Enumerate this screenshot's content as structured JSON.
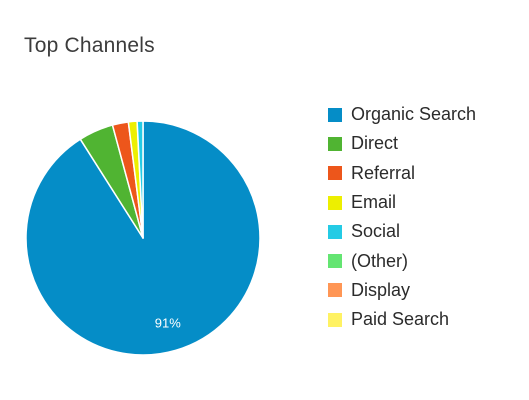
{
  "chart_data": {
    "type": "pie",
    "title": "Top Channels",
    "slices": [
      {
        "label": "Organic Search",
        "value": 91,
        "color": "#058dc7",
        "data_label": "91%"
      },
      {
        "label": "Direct",
        "value": 4.8,
        "color": "#50b432",
        "data_label": ""
      },
      {
        "label": "Referral",
        "value": 2.2,
        "color": "#ed561b",
        "data_label": ""
      },
      {
        "label": "Email",
        "value": 1.2,
        "color": "#edef00",
        "data_label": ""
      },
      {
        "label": "Social",
        "value": 0.8,
        "color": "#24cbe5",
        "data_label": ""
      },
      {
        "label": "(Other)",
        "value": 0,
        "color": "#64e572",
        "data_label": ""
      },
      {
        "label": "Display",
        "value": 0,
        "color": "#ff9655",
        "data_label": ""
      },
      {
        "label": "Paid Search",
        "value": 0,
        "color": "#fff263",
        "data_label": ""
      }
    ],
    "legend": "right"
  }
}
